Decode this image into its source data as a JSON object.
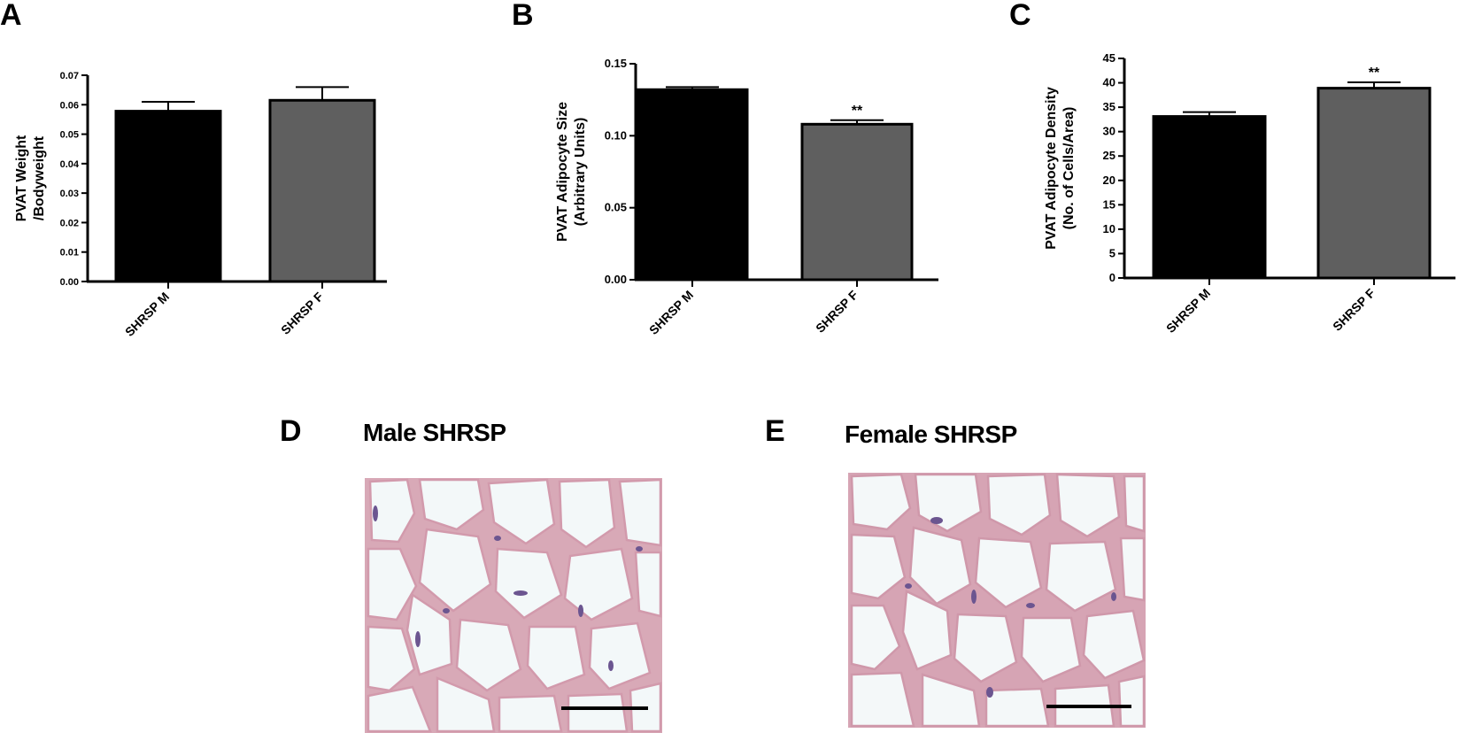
{
  "panels": {
    "A": {
      "letter": "A"
    },
    "B": {
      "letter": "B"
    },
    "C": {
      "letter": "C"
    },
    "D": {
      "letter": "D",
      "title": "Male SHRSP"
    },
    "E": {
      "letter": "E",
      "title": "Female SHRSP"
    }
  },
  "chart_data": [
    {
      "panel": "A",
      "type": "bar",
      "categories": [
        "SHRSP M",
        "SHRSP F"
      ],
      "values": [
        0.0578,
        0.0615
      ],
      "errors": [
        0.0032,
        0.0045
      ],
      "colors": [
        "#000000",
        "#5f5f5f"
      ],
      "significance": [
        "",
        ""
      ],
      "ylabel_lines": [
        "PVAT Weight",
        "/Bodyweight"
      ],
      "ylim": [
        0,
        0.07
      ],
      "yticks": [
        "0.00",
        "0.01",
        "0.02",
        "0.03",
        "0.04",
        "0.05",
        "0.06",
        "0.07"
      ],
      "grid": false
    },
    {
      "panel": "B",
      "type": "bar",
      "categories": [
        "SHRSP M",
        "SHRSP F"
      ],
      "values": [
        0.132,
        0.108
      ],
      "errors": [
        0.0018,
        0.0028
      ],
      "colors": [
        "#000000",
        "#5f5f5f"
      ],
      "significance": [
        "",
        "**"
      ],
      "ylabel_lines": [
        "PVAT Adipocyte Size",
        "(Arbitrary Units)"
      ],
      "ylim": [
        0,
        0.15
      ],
      "yticks": [
        "0.00",
        "0.05",
        "0.10",
        "0.15"
      ],
      "grid": false
    },
    {
      "panel": "C",
      "type": "bar",
      "categories": [
        "SHRSP M",
        "SHRSP F"
      ],
      "values": [
        33.1,
        38.9
      ],
      "errors": [
        0.9,
        1.2
      ],
      "colors": [
        "#000000",
        "#5f5f5f"
      ],
      "significance": [
        "",
        "**"
      ],
      "ylabel_lines": [
        "PVAT Adipocyte Density",
        "(No. of Cells/Area)"
      ],
      "ylim": [
        0,
        45
      ],
      "yticks": [
        "0",
        "5",
        "10",
        "15",
        "20",
        "25",
        "30",
        "35",
        "40",
        "45"
      ],
      "grid": false
    }
  ]
}
